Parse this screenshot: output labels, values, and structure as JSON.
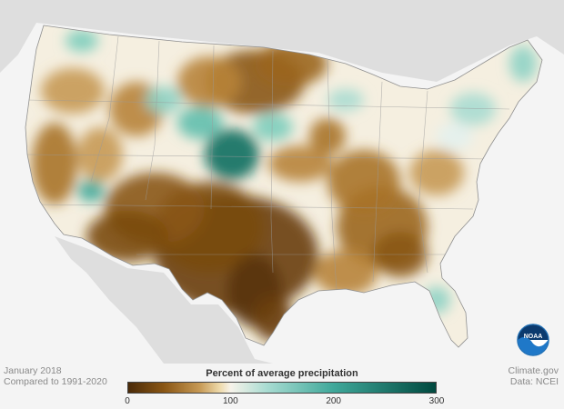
{
  "caption": {
    "date": "January 2018",
    "comparison": "Compared to 1991-2020"
  },
  "credits": {
    "source": "Climate.gov",
    "data": "Data: NCEI"
  },
  "legend": {
    "title": "Percent of average precipitation",
    "ticks": [
      {
        "value": 0,
        "label": "0"
      },
      {
        "value": 100,
        "label": "100"
      },
      {
        "value": 200,
        "label": "200"
      },
      {
        "value": 300,
        "label": "300"
      }
    ],
    "range": [
      0,
      300
    ],
    "colors": {
      "0": "#4a2a08",
      "35": "#8a5614",
      "70": "#c79a55",
      "90": "#efdcae",
      "100": "#f7f3ea",
      "135": "#a9dcd2",
      "200": "#3fa89a",
      "300": "#00493f"
    }
  },
  "logo": {
    "text": "NOAA",
    "color": "#1f6fb5"
  },
  "map": {
    "region": "Contiguous United States",
    "background_land": "#dcdcdc",
    "ocean": "#f4f4f4"
  }
}
